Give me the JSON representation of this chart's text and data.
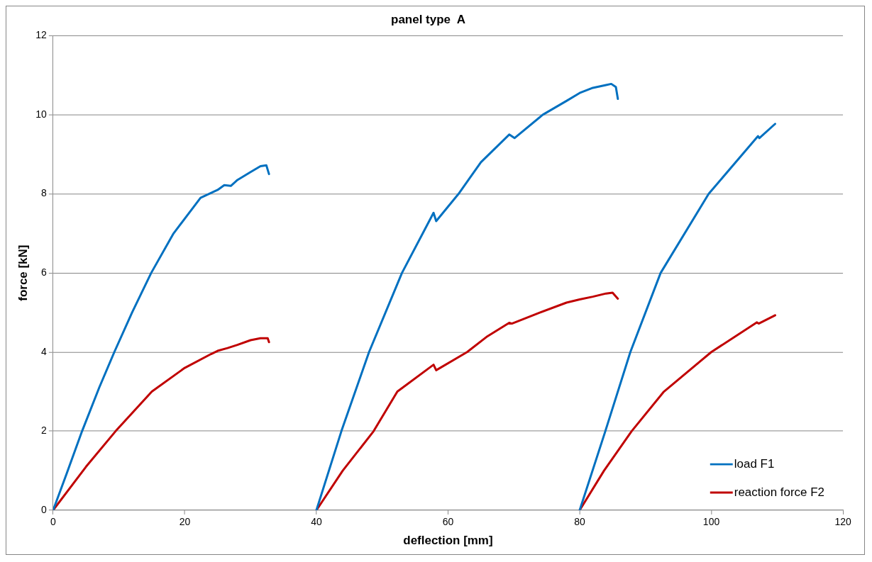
{
  "chart_data": {
    "type": "line",
    "title": "panel type  A",
    "xlabel": "deflection [mm]",
    "ylabel": "force [kN]",
    "xlim": [
      0,
      120
    ],
    "xticks": [
      0,
      20,
      40,
      60,
      80,
      100,
      120
    ],
    "ylim": [
      0,
      12
    ],
    "yticks": [
      0,
      2,
      4,
      6,
      8,
      10,
      12
    ],
    "grid": "y",
    "legend": "bottom right",
    "marker": "none",
    "line_style": "solid",
    "series": [
      {
        "name": "load F1",
        "color": "#0070c0",
        "x": [
          0,
          2,
          4.4,
          7,
          9.3,
          12,
          14.9,
          18.3,
          22.4,
          25,
          26,
          27,
          28,
          30,
          31.5,
          32.4,
          32.8,
          null,
          40,
          43.8,
          48,
          53,
          57.8,
          58.2,
          61.6,
          65,
          69.3,
          70.1,
          74.4,
          78,
          80,
          82,
          84,
          84.8,
          85.5,
          85.8,
          null,
          80,
          83.9,
          87.7,
          92.3,
          99.6,
          107.1,
          107.3,
          109.7
        ],
        "values": [
          0,
          0.9,
          2,
          3.1,
          4,
          5,
          6,
          7,
          7.9,
          8.1,
          8.22,
          8.2,
          8.35,
          8.55,
          8.7,
          8.72,
          8.5,
          null,
          0,
          2,
          4,
          6,
          7.52,
          7.31,
          8,
          8.8,
          9.5,
          9.41,
          10,
          10.35,
          10.55,
          10.68,
          10.75,
          10.78,
          10.7,
          10.4,
          null,
          0,
          2,
          4,
          6,
          8,
          9.46,
          9.41,
          9.77
        ]
      },
      {
        "name": "reaction force F2",
        "color": "#c00000",
        "x": [
          0,
          5,
          9.5,
          15,
          20,
          24,
          25,
          26.5,
          28,
          30,
          31.5,
          32.6,
          32.8,
          null,
          40,
          44,
          48.7,
          52.3,
          57.8,
          58.2,
          62.9,
          66,
          69.3,
          69.7,
          74,
          78,
          80,
          82,
          84,
          85,
          85.8,
          null,
          80,
          83.7,
          87.9,
          92.8,
          100,
          106.9,
          107.2,
          109.7
        ],
        "values": [
          0,
          1.1,
          2,
          3,
          3.6,
          3.95,
          4.03,
          4.1,
          4.18,
          4.3,
          4.35,
          4.35,
          4.25,
          null,
          0,
          1,
          2,
          3,
          3.68,
          3.54,
          4,
          4.4,
          4.74,
          4.72,
          5,
          5.25,
          5.33,
          5.4,
          5.48,
          5.5,
          5.35,
          null,
          0,
          1,
          2,
          3,
          4,
          4.75,
          4.72,
          4.93
        ]
      }
    ]
  }
}
